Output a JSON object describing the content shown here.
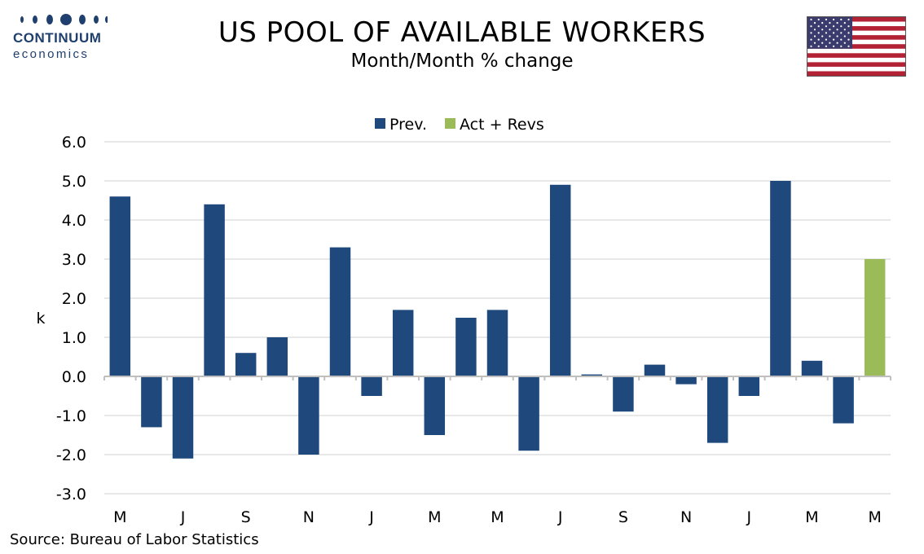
{
  "header": {
    "title": "US POOL OF AVAILABLE WORKERS",
    "subtitle": "Month/Month % change"
  },
  "logo": {
    "name": "CONTINUUM",
    "sub": "economics",
    "color": "#1f3f6e"
  },
  "flag": {
    "icon": "us-flag-icon"
  },
  "source": "Source: Bureau of Labor Statistics",
  "chart_data": {
    "type": "bar",
    "title": "US POOL OF AVAILABLE WORKERS",
    "subtitle": "Month/Month % change",
    "ylabel": "k",
    "xlabel": "",
    "ylim": [
      -3.0,
      6.0
    ],
    "yticks": [
      "6.0",
      "5.0",
      "4.0",
      "3.0",
      "2.0",
      "1.0",
      "0.0",
      "-1.0",
      "-2.0",
      "-3.0"
    ],
    "grid": true,
    "legend_position": "top",
    "x_tick_labels": [
      "M",
      "J",
      "S",
      "N",
      "J",
      "M",
      "M",
      "J",
      "S",
      "N",
      "J",
      "M",
      "M"
    ],
    "series": [
      {
        "name": "Prev.",
        "color": "#1f497d",
        "values": [
          4.6,
          -1.3,
          -2.1,
          4.4,
          0.6,
          1.0,
          -2.0,
          3.3,
          -0.5,
          1.7,
          -1.5,
          1.5,
          1.7,
          -1.9,
          4.9,
          0.05,
          -0.9,
          0.3,
          -0.2,
          -1.7,
          -0.5,
          5.0,
          0.4,
          -1.2,
          null
        ]
      },
      {
        "name": "Act + Revs",
        "color": "#9bbb59",
        "values": [
          null,
          null,
          null,
          null,
          null,
          null,
          null,
          null,
          null,
          null,
          null,
          null,
          null,
          null,
          null,
          null,
          null,
          null,
          null,
          null,
          null,
          null,
          null,
          null,
          3.0
        ]
      }
    ]
  }
}
